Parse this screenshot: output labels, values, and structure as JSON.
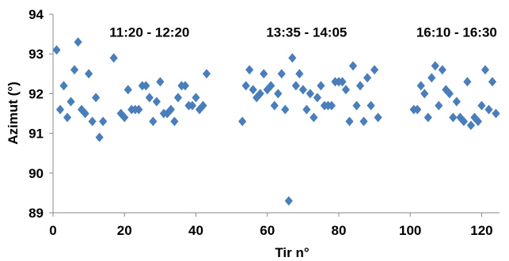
{
  "chart_data": {
    "type": "scatter",
    "xlabel": "Tir n°",
    "ylabel": "Azimut (°)",
    "xlim": [
      0,
      125
    ],
    "ylim": [
      89,
      94
    ],
    "xticks": [
      0,
      20,
      40,
      60,
      80,
      100,
      120
    ],
    "yticks": [
      89,
      90,
      91,
      92,
      93,
      94
    ],
    "grid": "none",
    "legend": "none",
    "marker": "diamond",
    "marker_color": "#4a7ebb",
    "annotations": [
      {
        "text": "11:20 - 12:20",
        "x": 27,
        "y": 93.55
      },
      {
        "text": "13:35 - 14:05",
        "x": 71,
        "y": 93.55
      },
      {
        "text": "16:10 - 16:30",
        "x": 113,
        "y": 93.55
      }
    ],
    "series": [
      {
        "points": [
          [
            1,
            93.1
          ],
          [
            2,
            91.6
          ],
          [
            3,
            92.2
          ],
          [
            4,
            91.4
          ],
          [
            5,
            91.8
          ],
          [
            6,
            92.6
          ],
          [
            7,
            93.3
          ],
          [
            8,
            91.6
          ],
          [
            9,
            91.5
          ],
          [
            10,
            92.5
          ],
          [
            11,
            91.3
          ],
          [
            12,
            91.9
          ],
          [
            13,
            90.9
          ],
          [
            14,
            91.3
          ],
          [
            17,
            92.9
          ],
          [
            19,
            91.5
          ],
          [
            20,
            91.4
          ],
          [
            21,
            92.1
          ],
          [
            22,
            91.6
          ],
          [
            23,
            91.6
          ],
          [
            24,
            91.6
          ],
          [
            25,
            92.2
          ],
          [
            26,
            92.2
          ],
          [
            27,
            91.9
          ],
          [
            28,
            91.3
          ],
          [
            29,
            91.8
          ],
          [
            30,
            92.3
          ],
          [
            31,
            91.5
          ],
          [
            32,
            91.5
          ],
          [
            33,
            91.6
          ],
          [
            34,
            91.3
          ],
          [
            35,
            91.9
          ],
          [
            36,
            92.2
          ],
          [
            37,
            92.2
          ],
          [
            38,
            91.7
          ],
          [
            39,
            91.7
          ],
          [
            40,
            91.9
          ],
          [
            41,
            91.6
          ],
          [
            42,
            91.7
          ],
          [
            43,
            92.5
          ],
          [
            53,
            91.3
          ],
          [
            54,
            92.2
          ],
          [
            55,
            92.6
          ],
          [
            56,
            92.1
          ],
          [
            57,
            91.9
          ],
          [
            58,
            92.0
          ],
          [
            59,
            92.5
          ],
          [
            60,
            92.1
          ],
          [
            61,
            92.2
          ],
          [
            62,
            91.7
          ],
          [
            63,
            92.0
          ],
          [
            64,
            92.5
          ],
          [
            65,
            91.6
          ],
          [
            66,
            89.3
          ],
          [
            67,
            92.9
          ],
          [
            68,
            92.2
          ],
          [
            69,
            92.5
          ],
          [
            70,
            92.1
          ],
          [
            71,
            91.6
          ],
          [
            72,
            92.0
          ],
          [
            73,
            91.4
          ],
          [
            74,
            91.9
          ],
          [
            75,
            92.2
          ],
          [
            76,
            91.7
          ],
          [
            77,
            91.7
          ],
          [
            78,
            91.7
          ],
          [
            79,
            92.3
          ],
          [
            80,
            92.3
          ],
          [
            81,
            92.3
          ],
          [
            82,
            92.1
          ],
          [
            83,
            91.3
          ],
          [
            84,
            92.7
          ],
          [
            85,
            91.7
          ],
          [
            86,
            92.2
          ],
          [
            87,
            91.3
          ],
          [
            88,
            92.4
          ],
          [
            89,
            91.7
          ],
          [
            90,
            92.6
          ],
          [
            91,
            91.4
          ],
          [
            101,
            91.6
          ],
          [
            102,
            91.6
          ],
          [
            103,
            92.2
          ],
          [
            104,
            92.0
          ],
          [
            105,
            91.4
          ],
          [
            106,
            92.4
          ],
          [
            107,
            92.7
          ],
          [
            108,
            91.7
          ],
          [
            109,
            92.6
          ],
          [
            110,
            92.1
          ],
          [
            111,
            92.0
          ],
          [
            112,
            91.4
          ],
          [
            113,
            91.8
          ],
          [
            114,
            91.4
          ],
          [
            115,
            91.3
          ],
          [
            116,
            92.3
          ],
          [
            117,
            91.2
          ],
          [
            118,
            91.4
          ],
          [
            119,
            91.3
          ],
          [
            120,
            91.7
          ],
          [
            121,
            92.6
          ],
          [
            122,
            91.6
          ],
          [
            123,
            92.3
          ],
          [
            124,
            91.5
          ]
        ]
      }
    ]
  }
}
